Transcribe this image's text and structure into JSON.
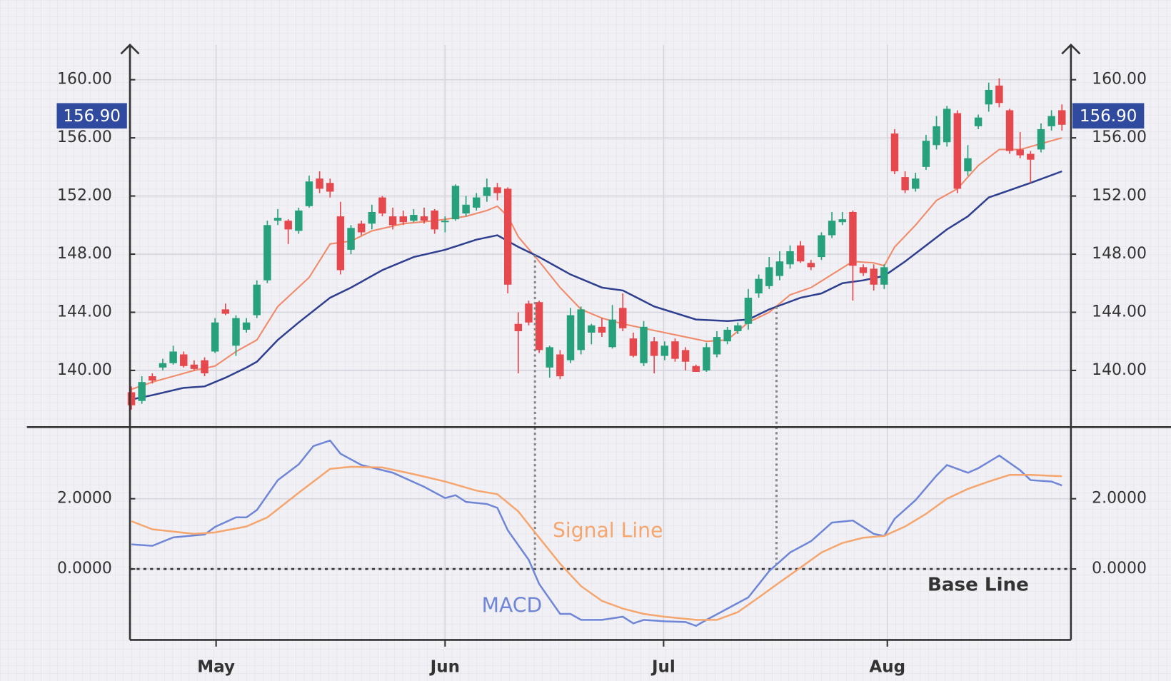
{
  "chart_data": [
    {
      "type": "candlestick",
      "xlim": [
        -0.14,
        89.86
      ],
      "xticks": [
        {
          "value": 8.1,
          "label": "May"
        },
        {
          "value": 30,
          "label": "Jun"
        },
        {
          "value": 50.9,
          "label": "Jul"
        },
        {
          "value": 72.3,
          "label": "Aug"
        }
      ],
      "ylim": [
        136.1,
        162.4
      ],
      "yticks": [
        {
          "value": 140,
          "label": "140.00"
        },
        {
          "value": 144,
          "label": "144.00"
        },
        {
          "value": 148,
          "label": "148.00"
        },
        {
          "value": 152,
          "label": "152.00"
        },
        {
          "value": 156,
          "label": "156.00"
        },
        {
          "value": 160,
          "label": "160.00"
        }
      ],
      "grid": true,
      "up_color": "#26a17b",
      "down_color": "#e5484d",
      "last_price": {
        "value": 156.9,
        "label": "156.90"
      },
      "candles": [
        [
          138.5,
          138.9,
          137.3,
          137.6
        ],
        [
          137.9,
          139.6,
          137.7,
          139.2
        ],
        [
          139.6,
          139.8,
          139.1,
          139.3
        ],
        [
          140.2,
          140.8,
          140.0,
          140.5
        ],
        [
          140.5,
          141.7,
          140.4,
          141.3
        ],
        [
          141.1,
          141.3,
          140.2,
          140.3
        ],
        [
          140.4,
          140.7,
          140.0,
          140.1
        ],
        [
          140.7,
          140.9,
          139.6,
          139.8
        ],
        [
          141.3,
          143.6,
          141.2,
          143.3
        ],
        [
          144.2,
          144.6,
          143.8,
          143.9
        ],
        [
          141.7,
          143.8,
          141.0,
          143.6
        ],
        [
          142.8,
          143.6,
          142.6,
          143.3
        ],
        [
          143.8,
          146.2,
          143.6,
          145.9
        ],
        [
          146.2,
          150.3,
          146.0,
          150.0
        ],
        [
          150.3,
          151.1,
          150.0,
          150.5
        ],
        [
          150.3,
          150.4,
          148.7,
          149.7
        ],
        [
          149.6,
          151.2,
          149.4,
          151.0
        ],
        [
          151.3,
          153.4,
          151.2,
          153.0
        ],
        [
          153.2,
          153.7,
          152.2,
          152.5
        ],
        [
          152.9,
          153.2,
          151.9,
          152.3
        ],
        [
          150.6,
          151.6,
          146.6,
          146.9
        ],
        [
          148.3,
          150.0,
          148.0,
          149.8
        ],
        [
          150.1,
          150.3,
          149.3,
          149.5
        ],
        [
          150.1,
          151.4,
          149.7,
          150.9
        ],
        [
          151.9,
          152.0,
          150.6,
          150.8
        ],
        [
          150.6,
          151.2,
          149.7,
          150.0
        ],
        [
          150.6,
          151.0,
          150.0,
          150.2
        ],
        [
          150.3,
          151.1,
          150.2,
          150.7
        ],
        [
          150.6,
          151.2,
          150.1,
          150.3
        ],
        [
          151.0,
          151.1,
          149.4,
          149.7
        ],
        [
          150.2,
          150.6,
          149.5,
          150.3
        ],
        [
          150.4,
          152.8,
          150.3,
          152.7
        ],
        [
          150.8,
          152.0,
          150.6,
          151.4
        ],
        [
          151.2,
          152.2,
          151.0,
          151.9
        ],
        [
          152.0,
          153.2,
          151.6,
          152.6
        ],
        [
          152.6,
          152.9,
          151.7,
          152.2
        ],
        [
          152.5,
          152.6,
          145.3,
          145.9
        ],
        [
          143.2,
          144.0,
          139.8,
          142.7
        ],
        [
          144.6,
          144.8,
          143.1,
          143.3
        ],
        [
          144.7,
          144.8,
          141.2,
          141.4
        ],
        [
          140.2,
          141.7,
          139.5,
          141.6
        ],
        [
          141.1,
          141.4,
          139.4,
          139.6
        ],
        [
          140.7,
          144.3,
          140.5,
          143.8
        ],
        [
          141.4,
          144.4,
          141.1,
          144.2
        ],
        [
          142.6,
          143.2,
          141.8,
          143.1
        ],
        [
          143.0,
          143.6,
          142.3,
          142.6
        ],
        [
          141.6,
          144.5,
          141.5,
          143.5
        ],
        [
          144.3,
          145.3,
          142.7,
          142.9
        ],
        [
          142.2,
          142.6,
          140.9,
          141.0
        ],
        [
          140.5,
          143.4,
          140.3,
          143.0
        ],
        [
          142.0,
          142.3,
          139.8,
          141.0
        ],
        [
          141.0,
          142.0,
          140.7,
          141.7
        ],
        [
          142.0,
          142.2,
          140.6,
          140.8
        ],
        [
          141.4,
          141.6,
          140.0,
          140.6
        ],
        [
          140.3,
          140.4,
          139.9,
          139.9
        ],
        [
          140.0,
          141.9,
          139.9,
          141.6
        ],
        [
          141.1,
          142.7,
          140.9,
          142.3
        ],
        [
          142.0,
          143.0,
          141.8,
          142.8
        ],
        [
          142.7,
          143.3,
          142.5,
          143.1
        ],
        [
          143.2,
          145.6,
          142.8,
          145.0
        ],
        [
          145.3,
          146.6,
          145.0,
          146.3
        ],
        [
          145.8,
          147.8,
          145.6,
          147.1
        ],
        [
          146.5,
          148.2,
          146.2,
          147.5
        ],
        [
          147.3,
          148.6,
          147.0,
          148.2
        ],
        [
          148.6,
          148.9,
          147.4,
          147.5
        ],
        [
          147.4,
          147.6,
          146.9,
          147.1
        ],
        [
          147.8,
          149.5,
          147.6,
          149.3
        ],
        [
          149.3,
          150.9,
          149.1,
          150.3
        ],
        [
          150.2,
          150.9,
          150.0,
          150.4
        ],
        [
          150.9,
          151.0,
          144.8,
          147.2
        ],
        [
          147.1,
          147.3,
          146.5,
          146.7
        ],
        [
          147.0,
          147.3,
          145.5,
          145.9
        ],
        [
          145.9,
          147.3,
          145.6,
          147.1
        ],
        [
          156.3,
          156.6,
          153.5,
          153.7
        ],
        [
          153.3,
          153.7,
          152.2,
          152.4
        ],
        [
          152.5,
          153.6,
          152.3,
          153.2
        ],
        [
          154.0,
          156.2,
          153.8,
          155.8
        ],
        [
          155.5,
          157.5,
          155.2,
          156.8
        ],
        [
          155.7,
          158.2,
          155.4,
          158.0
        ],
        [
          157.7,
          157.9,
          152.2,
          152.5
        ],
        [
          153.7,
          155.5,
          153.4,
          154.6
        ],
        [
          156.8,
          157.6,
          156.6,
          157.4
        ],
        [
          158.3,
          159.8,
          157.8,
          159.3
        ],
        [
          159.6,
          160.1,
          158.1,
          158.4
        ],
        [
          157.9,
          158.0,
          154.9,
          155.1
        ],
        [
          155.2,
          156.4,
          154.6,
          154.8
        ],
        [
          154.9,
          155.1,
          152.9,
          154.5
        ],
        [
          155.2,
          157.0,
          155.0,
          156.6
        ],
        [
          156.8,
          157.9,
          156.5,
          157.5
        ],
        [
          157.9,
          158.3,
          156.5,
          156.9
        ]
      ],
      "series": [
        {
          "color": "#f08a6a",
          "x": [
            0,
            2,
            6,
            8,
            10,
            12,
            14,
            17,
            19,
            21,
            23,
            26,
            29,
            32,
            34,
            35,
            36,
            37,
            39,
            41,
            43,
            45,
            47,
            49,
            51,
            53,
            55,
            57,
            59,
            61,
            63,
            65,
            67,
            69,
            71,
            72,
            73,
            75,
            77,
            79,
            81,
            83,
            85,
            87,
            89
          ],
          "values": [
            138.7,
            139.2,
            140,
            140.3,
            141.3,
            142.1,
            144.4,
            146.4,
            148.7,
            148.9,
            149.6,
            150.1,
            150.3,
            150.6,
            151,
            151.3,
            150.6,
            149.2,
            147.5,
            145.7,
            144.2,
            143.6,
            143.2,
            142.9,
            142.6,
            142.3,
            142,
            142.1,
            143.3,
            144,
            145.2,
            145.7,
            146.6,
            147.5,
            147.4,
            147.2,
            148.5,
            150,
            151.7,
            152.5,
            154.1,
            155.2,
            155.2,
            155.6,
            156
          ]
        },
        {
          "color": "#2e3f8f",
          "x": [
            0,
            2,
            5,
            7,
            9,
            11,
            12,
            14,
            16,
            19,
            21,
            24,
            27,
            30,
            33,
            35,
            37,
            39,
            42,
            45,
            47,
            50,
            54,
            57,
            59,
            61,
            64,
            66,
            68,
            70,
            72,
            74,
            76,
            78,
            80,
            82,
            84,
            86,
            89
          ],
          "values": [
            138,
            138.3,
            138.8,
            138.9,
            139.5,
            140.2,
            140.6,
            142.1,
            143.3,
            145,
            145.7,
            146.9,
            147.8,
            148.3,
            149,
            149.3,
            148.5,
            147.8,
            146.6,
            145.7,
            145.5,
            144.4,
            143.5,
            143.4,
            143.5,
            144.2,
            145,
            145.3,
            146,
            146.2,
            146.5,
            147.5,
            148.6,
            149.7,
            150.6,
            151.9,
            152.4,
            152.9,
            153.7
          ]
        }
      ]
    },
    {
      "type": "line",
      "xlim": [
        -0.14,
        89.86
      ],
      "xticks": [
        {
          "value": 8.1,
          "label": "May"
        },
        {
          "value": 30,
          "label": "Jun"
        },
        {
          "value": 50.9,
          "label": "Jul"
        },
        {
          "value": 72.3,
          "label": "Aug"
        }
      ],
      "ylim": [
        -2.02,
        4.04
      ],
      "yticks": [
        {
          "value": 0,
          "label": "0.0000"
        },
        {
          "value": 2,
          "label": "2.0000"
        }
      ],
      "grid": true,
      "baseline": {
        "value": 0,
        "label": "Base Line"
      },
      "crossovers": [
        38.6,
        61.7
      ],
      "series": [
        {
          "name": "MACD",
          "color": "#6f86d6",
          "x": [
            0,
            2,
            4,
            7,
            8,
            10,
            11,
            12,
            14,
            16,
            17.4,
            19,
            20,
            22,
            25,
            28,
            30,
            31,
            32,
            34,
            35,
            36,
            38,
            39,
            41,
            42,
            43,
            45,
            47,
            48,
            49,
            51,
            53,
            54,
            55,
            57,
            59,
            61,
            63,
            65,
            67,
            69,
            71,
            72,
            73,
            75,
            77,
            78,
            80,
            81,
            83,
            85,
            86,
            88,
            89
          ],
          "values": [
            0.7,
            0.66,
            0.9,
            0.98,
            1.2,
            1.47,
            1.47,
            1.68,
            2.53,
            2.98,
            3.5,
            3.66,
            3.28,
            2.96,
            2.74,
            2.34,
            2.02,
            2.1,
            1.91,
            1.85,
            1.74,
            1.1,
            0.26,
            -0.43,
            -1.28,
            -1.28,
            -1.45,
            -1.45,
            -1.36,
            -1.55,
            -1.45,
            -1.49,
            -1.51,
            -1.62,
            -1.45,
            -1.13,
            -0.81,
            -0.06,
            0.47,
            0.79,
            1.32,
            1.38,
            1,
            0.94,
            1.43,
            1.96,
            2.66,
            2.96,
            2.74,
            2.87,
            3.23,
            2.81,
            2.53,
            2.49,
            2.38
          ]
        },
        {
          "name": "Signal Line",
          "color": "#f5a66e",
          "x": [
            0,
            2,
            6,
            8,
            11,
            13,
            16,
            19,
            21,
            24,
            27,
            30,
            33,
            35,
            37,
            39,
            41,
            43,
            45,
            47,
            49,
            51,
            54,
            56,
            58,
            60,
            62,
            64,
            66,
            68,
            70,
            72,
            74,
            76,
            78,
            80,
            82,
            84,
            86,
            89
          ],
          "values": [
            1.36,
            1.13,
            1,
            1.04,
            1.21,
            1.47,
            2.17,
            2.85,
            2.91,
            2.89,
            2.7,
            2.49,
            2.23,
            2.13,
            1.64,
            0.89,
            0.15,
            -0.49,
            -0.91,
            -1.13,
            -1.28,
            -1.36,
            -1.45,
            -1.45,
            -1.23,
            -0.81,
            -0.38,
            0.04,
            0.47,
            0.74,
            0.89,
            0.94,
            1.21,
            1.57,
            2,
            2.28,
            2.49,
            2.68,
            2.68,
            2.64
          ]
        }
      ]
    }
  ]
}
